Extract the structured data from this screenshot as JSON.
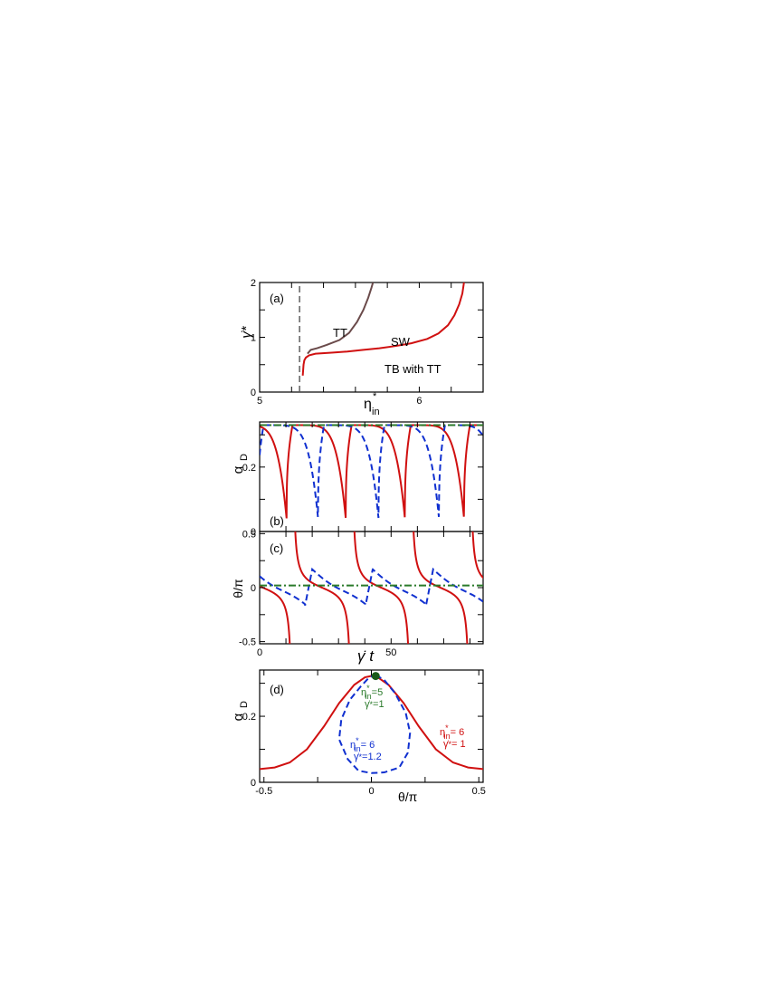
{
  "chart_data": [
    {
      "panel": "a",
      "type": "line",
      "panel_label": "(a)",
      "xlabel": "η*in",
      "ylabel": "γ̇*",
      "xlim": [
        5,
        6.4
      ],
      "ylim": [
        0,
        2
      ],
      "x_ticks": [
        "5",
        "6"
      ],
      "y_ticks": [
        "0",
        "1",
        "2"
      ],
      "regions": [
        "TT",
        "SW",
        "TB with TT"
      ],
      "series": [
        {
          "color": "#d01010",
          "style": "solid",
          "x": [
            5.27,
            5.275,
            5.28,
            5.29,
            5.31,
            5.35,
            5.45,
            5.55,
            5.65,
            5.75,
            5.85,
            5.95,
            6.05,
            6.12,
            6.18,
            6.22,
            6.25,
            6.27,
            6.28
          ],
          "y": [
            0.3,
            0.5,
            0.58,
            0.63,
            0.67,
            0.7,
            0.72,
            0.74,
            0.77,
            0.8,
            0.84,
            0.89,
            0.97,
            1.07,
            1.22,
            1.4,
            1.6,
            1.8,
            2.0
          ]
        },
        {
          "color": "#6a4a4a",
          "style": "solid",
          "x": [
            5.3,
            5.32,
            5.36,
            5.42,
            5.5,
            5.56,
            5.61,
            5.65,
            5.68,
            5.7,
            5.71
          ],
          "y": [
            0.7,
            0.77,
            0.8,
            0.86,
            0.95,
            1.08,
            1.28,
            1.5,
            1.72,
            1.9,
            2.0
          ]
        },
        {
          "color": "#555555",
          "style": "dashed",
          "x": [
            5.25,
            5.25
          ],
          "y": [
            0,
            2
          ]
        }
      ]
    },
    {
      "panel": "b",
      "type": "line",
      "panel_label": "(b)",
      "ylabel": "αD",
      "xlim": [
        0,
        85
      ],
      "ylim": [
        0,
        0.34
      ],
      "y_ticks": [
        "0",
        "0.2"
      ],
      "peak": 0.33,
      "series": [
        {
          "color": "#d01010",
          "style": "solid",
          "period": 22.5,
          "phase": 12.5,
          "min": 0.04
        },
        {
          "color": "#1030d0",
          "style": "dashed",
          "period": 23,
          "phase": 1.5,
          "min": 0.03
        },
        {
          "color": "#2a7a2a",
          "style": "dash-dot",
          "constant": 0.33
        }
      ]
    },
    {
      "panel": "c",
      "type": "line",
      "panel_label": "(c)",
      "xlabel": "γ̇ t",
      "ylabel": "θ/π",
      "xlim": [
        0,
        85
      ],
      "ylim": [
        -0.52,
        0.52
      ],
      "x_ticks": [
        "0",
        "50"
      ],
      "y_ticks": [
        "-0.5",
        "0",
        "0.5"
      ],
      "series": [
        {
          "color": "#d01010",
          "style": "solid",
          "period": 22.5,
          "phase": 12.5
        },
        {
          "color": "#1030d0",
          "style": "dashed",
          "period": 23,
          "amplitude": 0.17
        },
        {
          "color": "#2a7a2a",
          "style": "dash-dot",
          "constant": 0.02
        }
      ]
    },
    {
      "panel": "d",
      "type": "line",
      "panel_label": "(d)",
      "xlabel": "θ/π",
      "ylabel": "αD",
      "xlim": [
        -0.52,
        0.52
      ],
      "ylim": [
        0,
        0.34
      ],
      "x_ticks": [
        "-0.5",
        "0",
        "0.5"
      ],
      "y_ticks": [
        "0",
        "0.2"
      ],
      "series": [
        {
          "color": "#d01010",
          "style": "solid",
          "x": [
            -0.52,
            -0.45,
            -0.38,
            -0.3,
            -0.22,
            -0.15,
            -0.08,
            -0.03,
            0.0,
            0.03,
            0.08,
            0.15,
            0.22,
            0.3,
            0.38,
            0.45,
            0.52
          ],
          "y": [
            0.04,
            0.045,
            0.06,
            0.1,
            0.17,
            0.24,
            0.295,
            0.318,
            0.322,
            0.318,
            0.295,
            0.24,
            0.17,
            0.1,
            0.06,
            0.045,
            0.04
          ]
        },
        {
          "color": "#1030d0",
          "style": "dashed",
          "loop": true,
          "x": [
            0.02,
            0.06,
            0.11,
            0.16,
            0.18,
            0.17,
            0.13,
            0.06,
            0.0,
            -0.06,
            -0.11,
            -0.15,
            -0.14,
            -0.1,
            -0.05,
            -0.01,
            0.02
          ],
          "y": [
            0.325,
            0.31,
            0.27,
            0.21,
            0.15,
            0.09,
            0.045,
            0.03,
            0.028,
            0.035,
            0.07,
            0.13,
            0.19,
            0.25,
            0.29,
            0.318,
            0.325
          ]
        },
        {
          "color": "#1a5a1a",
          "style": "point",
          "x": [
            0.02
          ],
          "y": [
            0.322
          ]
        }
      ],
      "annotations": [
        {
          "color": "#2a7a2a",
          "lines": [
            "η*in=5",
            "γ̇*=1"
          ]
        },
        {
          "color": "#1030d0",
          "lines": [
            "η*in= 6",
            "γ̇*=1.2"
          ]
        },
        {
          "color": "#d01010",
          "lines": [
            "η*in= 6",
            "γ̇*= 1"
          ]
        }
      ]
    }
  ]
}
